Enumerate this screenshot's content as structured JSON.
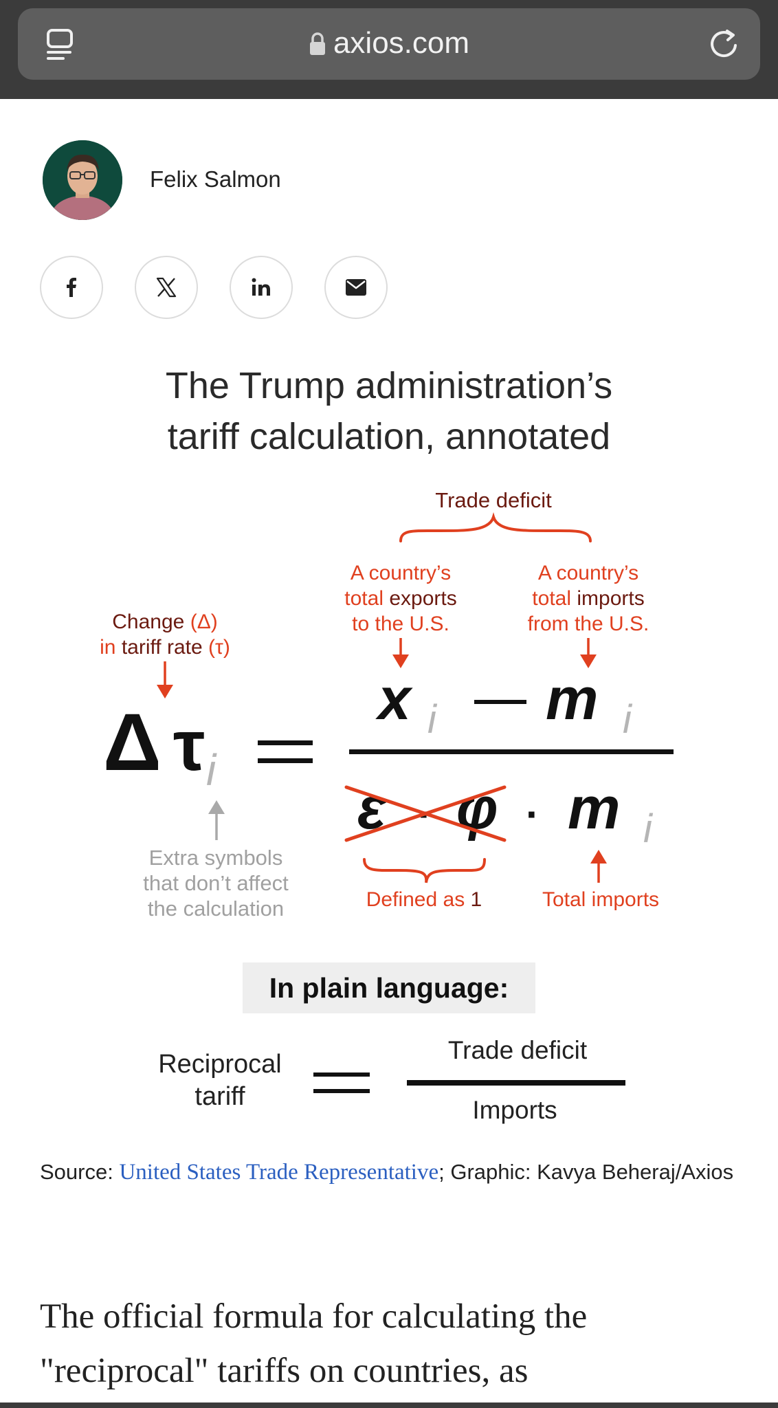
{
  "browser": {
    "url": "axios.com"
  },
  "author": {
    "name": "Felix Salmon"
  },
  "share": [
    {
      "name": "facebook-icon",
      "glyph": "f"
    },
    {
      "name": "x-icon",
      "glyph": "𝕏"
    },
    {
      "name": "linkedin-icon",
      "glyph": "in"
    },
    {
      "name": "email-icon",
      "glyph": "mail"
    }
  ],
  "graphic": {
    "title_line1": "The Trump administration’s",
    "title_line2": "tariff calculation, annotated",
    "labels": {
      "trade_deficit": "Trade deficit",
      "exports_line1": "A country’s",
      "exports_line2_a": "total",
      "exports_line2_b": " exports",
      "exports_line3": "to the U.S.",
      "imports_line1": "A country’s",
      "imports_line2_a": "total",
      "imports_line2_b": " imports",
      "imports_line3": "from the U.S.",
      "change_line1_a": "Change ",
      "change_line1_b": "(Δ)",
      "change_line2_a": "in ",
      "change_line2_b": "tariff rate ",
      "change_line2_c": "(τ)",
      "extra_line1": "Extra symbols",
      "extra_line2": "that don’t affect",
      "extra_line3": "the calculation",
      "defined_a": "Defined as ",
      "defined_b": "1",
      "total_imports": "Total imports"
    },
    "math": {
      "delta": "Δ",
      "tau": "τ",
      "sub": "i",
      "x": "x",
      "m": "m",
      "epsilon": "ε",
      "phi": "φ",
      "dot": "·"
    },
    "plain_heading": "In plain language:",
    "plain": {
      "lhs_line1": "Reciprocal",
      "lhs_line2": "tariff",
      "numerator": "Trade deficit",
      "denominator": "Imports"
    },
    "colors": {
      "red": "#e0401f",
      "dark_red": "#6b1a10",
      "gray": "#a9a9a9"
    }
  },
  "source": {
    "prefix": "Source: ",
    "link": "United States Trade Representative",
    "suffix": "; Graphic: Kavya Beheraj/Axios"
  },
  "body": {
    "text": "The official formula for calculating the \"reciprocal\" tariffs on countries, as"
  }
}
